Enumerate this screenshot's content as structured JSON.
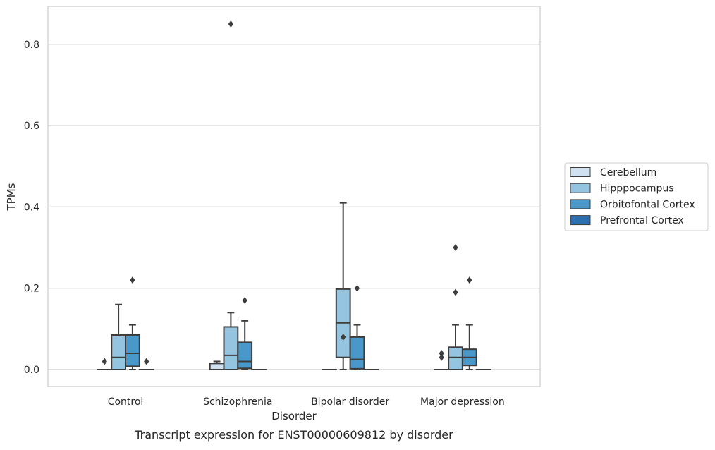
{
  "caption": "Transcript expression for ENST00000609812 by disorder",
  "chart_data": {
    "type": "boxplot",
    "xlabel": "Disorder",
    "ylabel": "TPMs",
    "ylim": [
      -0.042,
      0.893
    ],
    "yticks": [
      0.0,
      0.2,
      0.4,
      0.6,
      0.8
    ],
    "ytick_labels": [
      "0.0",
      "0.2",
      "0.4",
      "0.6",
      "0.8"
    ],
    "grid": "horizontal",
    "legend_position": "right",
    "categories": [
      "Control",
      "Schizophrenia",
      "Bipolar disorder",
      "Major depression"
    ],
    "series": [
      {
        "name": "Cerebellum",
        "color": "#d0e1f2",
        "boxes": [
          {
            "q1": 0,
            "median": 0,
            "q3": 0,
            "whisker_low": 0,
            "whisker_high": 0,
            "outliers": [
              0.02
            ]
          },
          {
            "q1": 0,
            "median": 0,
            "q3": 0.015,
            "whisker_low": 0,
            "whisker_high": 0.02,
            "outliers": []
          },
          {
            "q1": 0,
            "median": 0,
            "q3": 0,
            "whisker_low": 0,
            "whisker_high": 0,
            "outliers": []
          },
          {
            "q1": 0,
            "median": 0,
            "q3": 0,
            "whisker_low": 0,
            "whisker_high": 0,
            "outliers": [
              0.03,
              0.04
            ]
          }
        ]
      },
      {
        "name": "Hipppocampus",
        "color": "#94c4df",
        "boxes": [
          {
            "q1": 0,
            "median": 0.03,
            "q3": 0.085,
            "whisker_low": 0,
            "whisker_high": 0.16,
            "outliers": []
          },
          {
            "q1": 0,
            "median": 0.035,
            "q3": 0.105,
            "whisker_low": 0,
            "whisker_high": 0.14,
            "outliers": [
              0.85
            ]
          },
          {
            "q1": 0.03,
            "median": 0.115,
            "q3": 0.198,
            "whisker_low": 0,
            "whisker_high": 0.41,
            "outliers": [
              0.08
            ]
          },
          {
            "q1": 0,
            "median": 0.03,
            "q3": 0.055,
            "whisker_low": 0,
            "whisker_high": 0.11,
            "outliers": [
              0.19,
              0.3
            ]
          }
        ]
      },
      {
        "name": "Orbitofontal Cortex",
        "color": "#4a98c9",
        "boxes": [
          {
            "q1": 0.008,
            "median": 0.04,
            "q3": 0.085,
            "whisker_low": 0,
            "whisker_high": 0.11,
            "outliers": [
              0.22
            ]
          },
          {
            "q1": 0.003,
            "median": 0.02,
            "q3": 0.067,
            "whisker_low": 0,
            "whisker_high": 0.12,
            "outliers": [
              0.17
            ]
          },
          {
            "q1": 0.002,
            "median": 0.025,
            "q3": 0.08,
            "whisker_low": 0,
            "whisker_high": 0.11,
            "outliers": [
              0.2
            ]
          },
          {
            "q1": 0.01,
            "median": 0.03,
            "q3": 0.05,
            "whisker_low": 0,
            "whisker_high": 0.11,
            "outliers": [
              0.22
            ]
          }
        ]
      },
      {
        "name": "Prefrontal Cortex",
        "color": "#2d6eb1",
        "boxes": [
          {
            "q1": 0,
            "median": 0,
            "q3": 0,
            "whisker_low": 0,
            "whisker_high": 0,
            "outliers": [
              0.02
            ]
          },
          {
            "q1": 0,
            "median": 0,
            "q3": 0,
            "whisker_low": 0,
            "whisker_high": 0,
            "outliers": []
          },
          {
            "q1": 0,
            "median": 0,
            "q3": 0,
            "whisker_low": 0,
            "whisker_high": 0,
            "outliers": []
          },
          {
            "q1": 0,
            "median": 0,
            "q3": 0,
            "whisker_low": 0,
            "whisker_high": 0,
            "outliers": []
          }
        ]
      }
    ]
  }
}
